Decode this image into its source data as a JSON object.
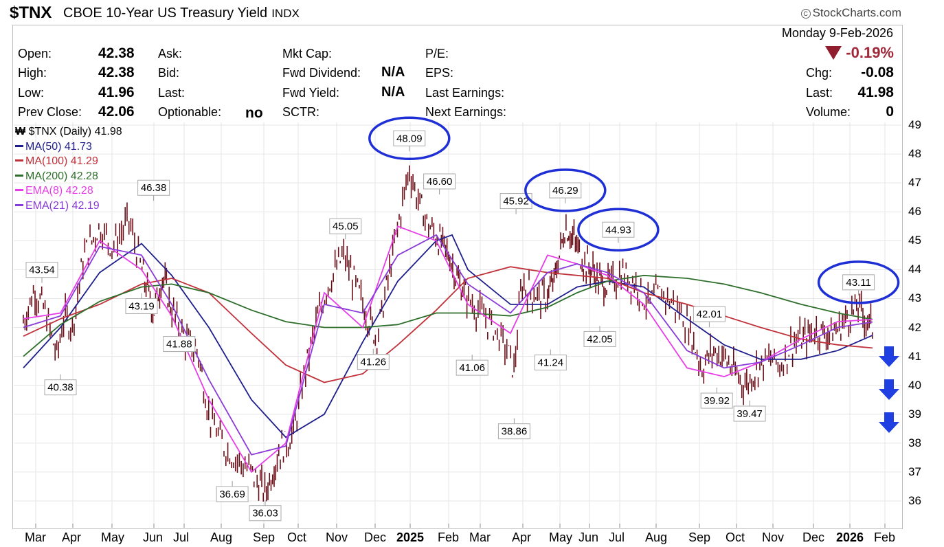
{
  "header": {
    "symbol": "$TNX",
    "name": "CBOE 10-Year US Treasury Yield",
    "exchange": "INDX",
    "brand": "StockCharts.com",
    "date": "Monday  9-Feb-2026"
  },
  "quote": {
    "open_label": "Open:",
    "open": "42.38",
    "high_label": "High:",
    "high": "42.38",
    "low_label": "Low:",
    "low": "41.96",
    "prev_label": "Prev Close:",
    "prev": "42.06",
    "ask_label": "Ask:",
    "bid_label": "Bid:",
    "last_label_mid": "Last:",
    "optionable_label": "Optionable:",
    "optionable": "no",
    "mktcap_label": "Mkt Cap:",
    "fwddiv_label": "Fwd Dividend:",
    "fwddiv": "N/A",
    "fwdyield_label": "Fwd Yield:",
    "fwdyield": "N/A",
    "sctr_label": "SCTR:",
    "pe_label": "P/E:",
    "eps_label": "EPS:",
    "lastearn_label": "Last Earnings:",
    "nextearn_label": "Next Earnings:",
    "pct_change": "-0.19%",
    "chg_label": "Chg:",
    "chg": "-0.08",
    "last_label": "Last:",
    "last": "41.98",
    "volume_label": "Volume:",
    "volume": "0"
  },
  "legend": [
    {
      "text": "$TNX (Daily) 41.98",
      "color": "#000000"
    },
    {
      "text": "MA(50) 41.73",
      "color": "#1e1e8c"
    },
    {
      "text": "MA(100) 41.29",
      "color": "#c0313a"
    },
    {
      "text": "MA(200) 42.28",
      "color": "#2d6e2a"
    },
    {
      "text": "EMA(8) 42.28",
      "color": "#e63de6"
    },
    {
      "text": "EMA(21) 42.19",
      "color": "#8a3ad6"
    }
  ],
  "colors": {
    "price": "#6b0d16",
    "highlight_circle": "#1f2fd6",
    "arrow": "#1f3fe0",
    "label_bg": "#ffffff"
  },
  "chart_data": {
    "type": "line",
    "title": "$TNX CBOE 10-Year US Treasury Yield INDX",
    "x_ticks": [
      "Mar",
      "Apr",
      "May",
      "Jun",
      "Jul",
      "Aug",
      "Sep",
      "Oct",
      "Nov",
      "Dec",
      "2025",
      "Feb",
      "Mar",
      "Apr",
      "May",
      "Jun",
      "Jul",
      "Aug",
      "Sep",
      "Oct",
      "Nov",
      "Dec",
      "2026",
      "Feb"
    ],
    "y_ticks": [
      36,
      37,
      38,
      39,
      40,
      41,
      42,
      43,
      44,
      45,
      46,
      47,
      48,
      49
    ],
    "ylim": [
      35.5,
      49
    ],
    "grid": true,
    "series": [
      {
        "name": "$TNX (Daily)",
        "points": [
          [
            0,
            42.2
          ],
          [
            0.3,
            43.3
          ],
          [
            0.6,
            42.5
          ],
          [
            0.9,
            41.0
          ],
          [
            1.1,
            42.4
          ],
          [
            1.3,
            42.0
          ],
          [
            1.6,
            44.5
          ],
          [
            2.0,
            45.5
          ],
          [
            2.3,
            44.8
          ],
          [
            2.7,
            45.7
          ],
          [
            3.0,
            44.0
          ],
          [
            3.4,
            42.5
          ],
          [
            3.7,
            43.8
          ],
          [
            4.0,
            42.6
          ],
          [
            4.4,
            41.5
          ],
          [
            4.7,
            41.2
          ],
          [
            5.0,
            39.0
          ],
          [
            5.3,
            38.0
          ],
          [
            5.6,
            37.5
          ],
          [
            6.0,
            37.0
          ],
          [
            6.4,
            36.3
          ],
          [
            6.8,
            37.7
          ],
          [
            7.2,
            38.3
          ],
          [
            7.5,
            40.5
          ],
          [
            7.8,
            42.2
          ],
          [
            8.1,
            43.5
          ],
          [
            8.5,
            44.5
          ],
          [
            8.8,
            43.5
          ],
          [
            9.1,
            42.5
          ],
          [
            9.4,
            41.6
          ],
          [
            9.7,
            43.5
          ],
          [
            10.0,
            45.5
          ],
          [
            10.3,
            47.5
          ],
          [
            10.5,
            46.5
          ],
          [
            10.8,
            45.5
          ],
          [
            11.1,
            45.0
          ],
          [
            11.4,
            44.5
          ],
          [
            11.7,
            43.6
          ],
          [
            12.0,
            43.0
          ],
          [
            12.3,
            42.5
          ],
          [
            12.6,
            42.0
          ],
          [
            12.9,
            41.3
          ],
          [
            13.1,
            40.5
          ],
          [
            13.3,
            43.5
          ],
          [
            13.6,
            43.2
          ],
          [
            13.9,
            43.0
          ],
          [
            14.2,
            43.5
          ],
          [
            14.4,
            44.5
          ],
          [
            14.6,
            45.5
          ],
          [
            14.9,
            45.0
          ],
          [
            15.2,
            44.3
          ],
          [
            15.5,
            44.0
          ],
          [
            15.8,
            43.5
          ],
          [
            16.1,
            43.5
          ],
          [
            16.4,
            43.9
          ],
          [
            16.8,
            43.5
          ],
          [
            17.1,
            42.8
          ],
          [
            17.4,
            43.2
          ],
          [
            17.7,
            42.8
          ],
          [
            17.9,
            42.4
          ],
          [
            18.1,
            41.8
          ],
          [
            18.4,
            40.6
          ],
          [
            18.7,
            41.2
          ],
          [
            19.0,
            41.0
          ],
          [
            19.3,
            40.4
          ],
          [
            19.6,
            40.0
          ],
          [
            19.9,
            40.6
          ],
          [
            20.2,
            40.9
          ],
          [
            20.5,
            40.7
          ],
          [
            20.8,
            41.5
          ],
          [
            21.1,
            41.6
          ],
          [
            21.4,
            41.9
          ],
          [
            21.7,
            41.8
          ],
          [
            22.0,
            41.9
          ],
          [
            22.3,
            42.4
          ],
          [
            22.6,
            42.7
          ],
          [
            22.8,
            42.3
          ],
          [
            23.0,
            42.0
          ]
        ]
      },
      {
        "name": "MA(50)",
        "points": [
          [
            0,
            40.6
          ],
          [
            1,
            42.0
          ],
          [
            2,
            43.9
          ],
          [
            3,
            44.9
          ],
          [
            4,
            43.8
          ],
          [
            5,
            42.0
          ],
          [
            6,
            39.5
          ],
          [
            7,
            38.2
          ],
          [
            8,
            39.0
          ],
          [
            9,
            41.5
          ],
          [
            10,
            43.6
          ],
          [
            11,
            45.0
          ],
          [
            11.5,
            45.2
          ],
          [
            12,
            44.0
          ],
          [
            13,
            42.8
          ],
          [
            14,
            42.8
          ],
          [
            15,
            43.4
          ],
          [
            16,
            43.6
          ],
          [
            17,
            43.4
          ],
          [
            18,
            42.3
          ],
          [
            19,
            41.4
          ],
          [
            20,
            40.9
          ],
          [
            21,
            40.9
          ],
          [
            22,
            41.2
          ],
          [
            23,
            41.73
          ]
        ]
      },
      {
        "name": "MA(100)",
        "points": [
          [
            0,
            41.7
          ],
          [
            1,
            42.3
          ],
          [
            2,
            42.8
          ],
          [
            3,
            43.5
          ],
          [
            4,
            43.7
          ],
          [
            5,
            43.2
          ],
          [
            6,
            41.8
          ],
          [
            7,
            40.7
          ],
          [
            8,
            40.1
          ],
          [
            9,
            40.4
          ],
          [
            10,
            41.4
          ],
          [
            11,
            42.6
          ],
          [
            12,
            43.7
          ],
          [
            13,
            44.1
          ],
          [
            14,
            43.9
          ],
          [
            15,
            43.8
          ],
          [
            16,
            43.7
          ],
          [
            17,
            43.2
          ],
          [
            18,
            42.8
          ],
          [
            19,
            42.4
          ],
          [
            20,
            42.0
          ],
          [
            21,
            41.6
          ],
          [
            22,
            41.4
          ],
          [
            23,
            41.29
          ]
        ]
      },
      {
        "name": "MA(200)",
        "points": [
          [
            0,
            41.0
          ],
          [
            1,
            42.1
          ],
          [
            2,
            42.9
          ],
          [
            3,
            43.4
          ],
          [
            4,
            43.5
          ],
          [
            5,
            43.2
          ],
          [
            6,
            42.6
          ],
          [
            7,
            42.2
          ],
          [
            8,
            42.0
          ],
          [
            9,
            42.0
          ],
          [
            10,
            42.1
          ],
          [
            11,
            42.5
          ],
          [
            12,
            42.5
          ],
          [
            13,
            42.4
          ],
          [
            14,
            42.7
          ],
          [
            15,
            43.2
          ],
          [
            16,
            43.6
          ],
          [
            17,
            43.8
          ],
          [
            18,
            43.7
          ],
          [
            19,
            43.5
          ],
          [
            20,
            43.2
          ],
          [
            21,
            42.8
          ],
          [
            22,
            42.5
          ],
          [
            23,
            42.28
          ]
        ]
      },
      {
        "name": "EMA(8)",
        "points": [
          [
            0,
            42.3
          ],
          [
            1,
            42.5
          ],
          [
            2,
            45.0
          ],
          [
            3,
            44.0
          ],
          [
            4,
            42.4
          ],
          [
            5,
            39.5
          ],
          [
            6,
            37.0
          ],
          [
            7,
            38.0
          ],
          [
            8,
            43.2
          ],
          [
            9,
            42.0
          ],
          [
            10,
            45.5
          ],
          [
            11,
            45.0
          ],
          [
            12,
            42.8
          ],
          [
            13,
            41.8
          ],
          [
            14,
            44.5
          ],
          [
            15,
            44.2
          ],
          [
            16,
            43.8
          ],
          [
            17,
            42.8
          ],
          [
            18,
            40.6
          ],
          [
            19,
            40.3
          ],
          [
            20,
            40.8
          ],
          [
            21,
            41.6
          ],
          [
            22,
            42.2
          ],
          [
            23,
            42.28
          ]
        ]
      },
      {
        "name": "EMA(21)",
        "points": [
          [
            0,
            42.0
          ],
          [
            1,
            42.4
          ],
          [
            2,
            44.8
          ],
          [
            3,
            44.5
          ],
          [
            4,
            42.8
          ],
          [
            5,
            40.2
          ],
          [
            6,
            37.6
          ],
          [
            7,
            37.9
          ],
          [
            8,
            42.8
          ],
          [
            9,
            42.5
          ],
          [
            10,
            44.5
          ],
          [
            11,
            45.2
          ],
          [
            12,
            43.5
          ],
          [
            13,
            42.5
          ],
          [
            14,
            43.9
          ],
          [
            15,
            44.2
          ],
          [
            16,
            43.9
          ],
          [
            17,
            43.2
          ],
          [
            18,
            41.2
          ],
          [
            19,
            40.6
          ],
          [
            20,
            40.8
          ],
          [
            21,
            41.4
          ],
          [
            22,
            42.0
          ],
          [
            23,
            42.19
          ]
        ]
      }
    ],
    "annotations": [
      {
        "text": "43.54",
        "x": 0.5,
        "y": 43.54,
        "pos": "above"
      },
      {
        "text": "40.38",
        "x": 1.0,
        "y": 40.38,
        "pos": "below"
      },
      {
        "text": "43.19",
        "x": 3.0,
        "y": 43.19,
        "pos": "below"
      },
      {
        "text": "46.38",
        "x": 3.4,
        "y": 46.38,
        "pos": "above"
      },
      {
        "text": "41.88",
        "x": 4.2,
        "y": 41.88,
        "pos": "below"
      },
      {
        "text": "36.69",
        "x": 5.55,
        "y": 36.69,
        "pos": "below"
      },
      {
        "text": "36.03",
        "x": 6.4,
        "y": 36.03,
        "pos": "below"
      },
      {
        "text": "45.05",
        "x": 8.55,
        "y": 45.05,
        "pos": "above"
      },
      {
        "text": "41.26",
        "x": 9.3,
        "y": 41.26,
        "pos": "below"
      },
      {
        "text": "48.09",
        "x": 10.3,
        "y": 48.09,
        "pos": "above",
        "circled": true
      },
      {
        "text": "46.60",
        "x": 11.1,
        "y": 46.6,
        "pos": "above"
      },
      {
        "text": "41.06",
        "x": 12.1,
        "y": 41.06,
        "pos": "below"
      },
      {
        "text": "45.92",
        "x": 13.15,
        "y": 45.92,
        "pos": "above"
      },
      {
        "text": "38.86",
        "x": 13.1,
        "y": 38.86,
        "pos": "below"
      },
      {
        "text": "41.24",
        "x": 14.1,
        "y": 41.24,
        "pos": "below"
      },
      {
        "text": "46.29",
        "x": 14.6,
        "y": 46.29,
        "pos": "above",
        "circled": true
      },
      {
        "text": "42.05",
        "x": 15.75,
        "y": 42.05,
        "pos": "below"
      },
      {
        "text": "44.93",
        "x": 16.3,
        "y": 44.93,
        "pos": "above",
        "circled": true
      },
      {
        "text": "42.01",
        "x": 18.6,
        "y": 42.01,
        "pos": "above"
      },
      {
        "text": "39.92",
        "x": 18.8,
        "y": 39.92,
        "pos": "below"
      },
      {
        "text": "39.47",
        "x": 19.7,
        "y": 39.47,
        "pos": "below"
      },
      {
        "text": "43.11",
        "x": 22.6,
        "y": 43.11,
        "pos": "above",
        "circled": true
      }
    ]
  }
}
